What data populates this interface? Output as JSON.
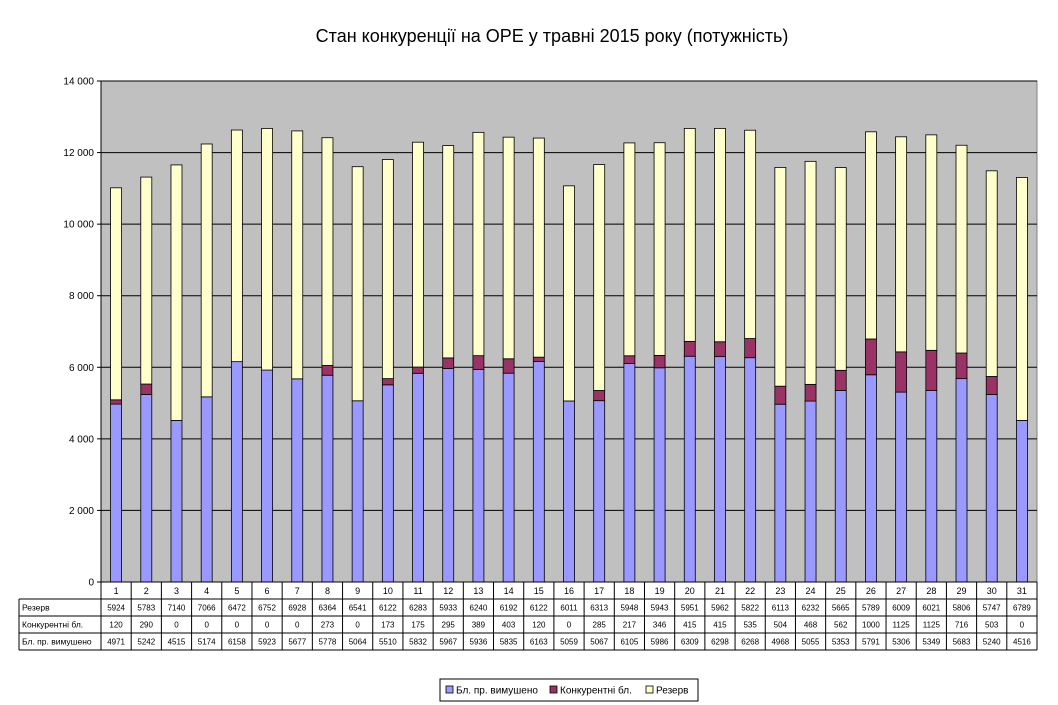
{
  "chart_data": {
    "type": "bar",
    "stacked": true,
    "title": "Стан конкуренції на ОРЕ  у травні 2015 року (потужність)",
    "categories": [
      "1",
      "2",
      "3",
      "4",
      "5",
      "6",
      "7",
      "8",
      "9",
      "10",
      "11",
      "12",
      "13",
      "14",
      "15",
      "16",
      "17",
      "18",
      "19",
      "20",
      "21",
      "22",
      "23",
      "24",
      "25",
      "26",
      "27",
      "28",
      "29",
      "30",
      "31"
    ],
    "series": [
      {
        "name": "Бл. пр. вимушено",
        "color": "#9999ff",
        "values": [
          4971,
          5242,
          4515,
          5174,
          6158,
          5923,
          5677,
          5778,
          5064,
          5510,
          5832,
          5967,
          5936,
          5835,
          6163,
          5059,
          5067,
          6105,
          5986,
          6309,
          6298,
          6268,
          4968,
          5055,
          5353,
          5791,
          5306,
          5349,
          5683,
          5240,
          4516
        ]
      },
      {
        "name": "Конкурентні бл.",
        "color": "#993366",
        "values": [
          120,
          290,
          0,
          0,
          0,
          0,
          0,
          273,
          0,
          173,
          175,
          295,
          389,
          403,
          120,
          0,
          285,
          217,
          346,
          415,
          415,
          535,
          504,
          468,
          562,
          1000,
          1125,
          1125,
          716,
          503,
          0
        ]
      },
      {
        "name": "Резерв",
        "color": "#ffffcc",
        "values": [
          5924,
          5783,
          7140,
          7066,
          6472,
          6752,
          6928,
          6364,
          6541,
          6122,
          6283,
          5933,
          6240,
          6192,
          6122,
          6011,
          6313,
          5948,
          5943,
          5951,
          5962,
          5822,
          6113,
          6232,
          5665,
          5789,
          6009,
          6021,
          5806,
          5747,
          6789
        ]
      }
    ],
    "ylim": [
      0,
      14000
    ],
    "yticks": [
      "0",
      "2 000",
      "4 000",
      "6 000",
      "8 000",
      "10 000",
      "12 000",
      "14 000"
    ],
    "ytick_values": [
      0,
      2000,
      4000,
      6000,
      8000,
      10000,
      12000,
      14000
    ],
    "grid": true,
    "plot_background": "#c0c0c0",
    "legend_position": "bottom",
    "data_table": true,
    "table_rows_order": [
      "Резерв",
      "Конкурентні бл.",
      "Бл. пр. вимушено"
    ]
  }
}
